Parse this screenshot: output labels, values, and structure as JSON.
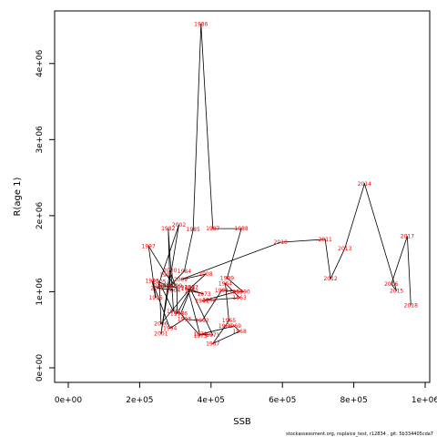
{
  "chart_data": {
    "type": "line",
    "xlabel": "SSB",
    "ylabel": "R(age 1)",
    "xlim": [
      0,
      1000000
    ],
    "ylim": [
      0,
      4500000
    ],
    "x_ticks": [
      0,
      200000,
      400000,
      600000,
      800000,
      1000000
    ],
    "x_tick_labels": [
      "0e+00",
      "2e+05",
      "4e+05",
      "6e+05",
      "8e+05",
      "1e+06"
    ],
    "y_ticks": [
      0,
      1000000,
      2000000,
      3000000,
      4000000
    ],
    "y_tick_labels": [
      "0e+00",
      "1e+06",
      "2e+06",
      "3e+06",
      "4e+06"
    ],
    "grid": false,
    "line_color": "#000000",
    "label_color": "#ff0000",
    "points": [
      {
        "year": "1960",
        "x": 470000,
        "y": 1000000
      },
      {
        "year": "1961",
        "x": 375000,
        "y": 880000
      },
      {
        "year": "1962",
        "x": 395000,
        "y": 890000
      },
      {
        "year": "1963",
        "x": 480000,
        "y": 920000
      },
      {
        "year": "1964",
        "x": 440000,
        "y": 1110000
      },
      {
        "year": "1965",
        "x": 450000,
        "y": 620000
      },
      {
        "year": "1966",
        "x": 440000,
        "y": 550000
      },
      {
        "year": "1967",
        "x": 405000,
        "y": 320000
      },
      {
        "year": "1968",
        "x": 480000,
        "y": 480000
      },
      {
        "year": "1969",
        "x": 465000,
        "y": 550000
      },
      {
        "year": "1970",
        "x": 370000,
        "y": 440000
      },
      {
        "year": "1971",
        "x": 405000,
        "y": 430000
      },
      {
        "year": "1972",
        "x": 345000,
        "y": 1010000
      },
      {
        "year": "1973",
        "x": 380000,
        "y": 970000
      },
      {
        "year": "1974",
        "x": 335000,
        "y": 1040000
      },
      {
        "year": "1975",
        "x": 370000,
        "y": 420000
      },
      {
        "year": "1976",
        "x": 315000,
        "y": 710000
      },
      {
        "year": "1977",
        "x": 345000,
        "y": 1060000
      },
      {
        "year": "1978",
        "x": 305000,
        "y": 710000
      },
      {
        "year": "1979",
        "x": 305000,
        "y": 1060000
      },
      {
        "year": "1980",
        "x": 260000,
        "y": 1080000
      },
      {
        "year": "1981",
        "x": 295000,
        "y": 740000
      },
      {
        "year": "1982",
        "x": 280000,
        "y": 1830000
      },
      {
        "year": "1983",
        "x": 285000,
        "y": 1080000
      },
      {
        "year": "1984",
        "x": 325000,
        "y": 1270000
      },
      {
        "year": "1985",
        "x": 350000,
        "y": 1820000
      },
      {
        "year": "1986",
        "x": 372000,
        "y": 4520000
      },
      {
        "year": "1987",
        "x": 405000,
        "y": 1830000
      },
      {
        "year": "1988",
        "x": 485000,
        "y": 1830000
      },
      {
        "year": "1989",
        "x": 445000,
        "y": 1180000
      },
      {
        "year": "1990",
        "x": 490000,
        "y": 1000000
      },
      {
        "year": "1991",
        "x": 430000,
        "y": 1020000
      },
      {
        "year": "1992",
        "x": 375000,
        "y": 620000
      },
      {
        "year": "1993",
        "x": 325000,
        "y": 640000
      },
      {
        "year": "1994",
        "x": 285000,
        "y": 520000
      },
      {
        "year": "1995",
        "x": 235000,
        "y": 1140000
      },
      {
        "year": "1996",
        "x": 245000,
        "y": 920000
      },
      {
        "year": "1997",
        "x": 225000,
        "y": 1600000
      },
      {
        "year": "1998",
        "x": 275000,
        "y": 1220000
      },
      {
        "year": "1999",
        "x": 300000,
        "y": 1080000
      },
      {
        "year": "2000",
        "x": 285000,
        "y": 1280000
      },
      {
        "year": "2001",
        "x": 260000,
        "y": 450000
      },
      {
        "year": "2002",
        "x": 310000,
        "y": 1880000
      },
      {
        "year": "2003",
        "x": 250000,
        "y": 1050000
      },
      {
        "year": "2004",
        "x": 295000,
        "y": 1020000
      },
      {
        "year": "2005",
        "x": 255000,
        "y": 1130000
      },
      {
        "year": "2006",
        "x": 260000,
        "y": 580000
      },
      {
        "year": "2007",
        "x": 345000,
        "y": 1060000
      },
      {
        "year": "2008",
        "x": 385000,
        "y": 1230000
      },
      {
        "year": "2009",
        "x": 315000,
        "y": 1160000
      },
      {
        "year": "2010",
        "x": 595000,
        "y": 1650000
      },
      {
        "year": "2011",
        "x": 720000,
        "y": 1690000
      },
      {
        "year": "2012",
        "x": 735000,
        "y": 1170000
      },
      {
        "year": "2013",
        "x": 775000,
        "y": 1570000
      },
      {
        "year": "2014",
        "x": 830000,
        "y": 2420000
      },
      {
        "year": "2015",
        "x": 920000,
        "y": 1010000
      },
      {
        "year": "2016",
        "x": 905000,
        "y": 1100000
      },
      {
        "year": "2017",
        "x": 950000,
        "y": 1730000
      },
      {
        "year": "2018",
        "x": 960000,
        "y": 820000
      }
    ]
  },
  "footer": "stockassessment.org, nsplaice_test, r12834 , git: 5b334405cda7"
}
